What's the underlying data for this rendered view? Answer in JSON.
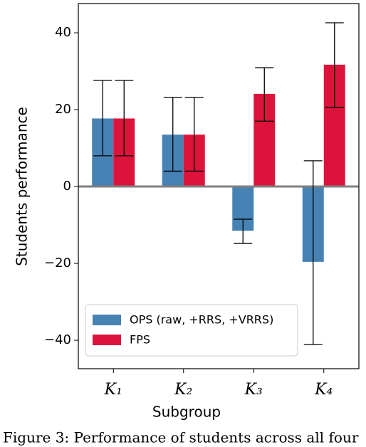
{
  "chart_data": {
    "type": "bar",
    "caption": "Figure 3: Performance of students across all four",
    "xlabel": "Subgroup",
    "ylabel": "Students performance",
    "categories": [
      "K₁",
      "K₂",
      "K₃",
      "K₄"
    ],
    "series": [
      {
        "name": "OPS (raw, +RRS, +VRRS)",
        "color": "#4682b4",
        "values": [
          17.7,
          13.5,
          -11.5,
          -19.6
        ],
        "yerr_lower": [
          9.7,
          9.5,
          3.3,
          21.5
        ],
        "yerr_upper": [
          9.9,
          9.7,
          3.0,
          26.3
        ]
      },
      {
        "name": "FPS",
        "color": "#dc143c",
        "values": [
          17.7,
          13.5,
          24.1,
          31.7
        ],
        "yerr_lower": [
          9.7,
          9.5,
          7.1,
          11.1
        ],
        "yerr_upper": [
          9.9,
          9.7,
          6.8,
          10.9
        ]
      }
    ],
    "ylim": [
      -47.4,
      47.6
    ],
    "yticks": [
      {
        "value": -40,
        "label": "−40"
      },
      {
        "value": -20,
        "label": "−20"
      },
      0,
      20,
      40
    ],
    "legend": "lower-left",
    "zero_line": true
  }
}
